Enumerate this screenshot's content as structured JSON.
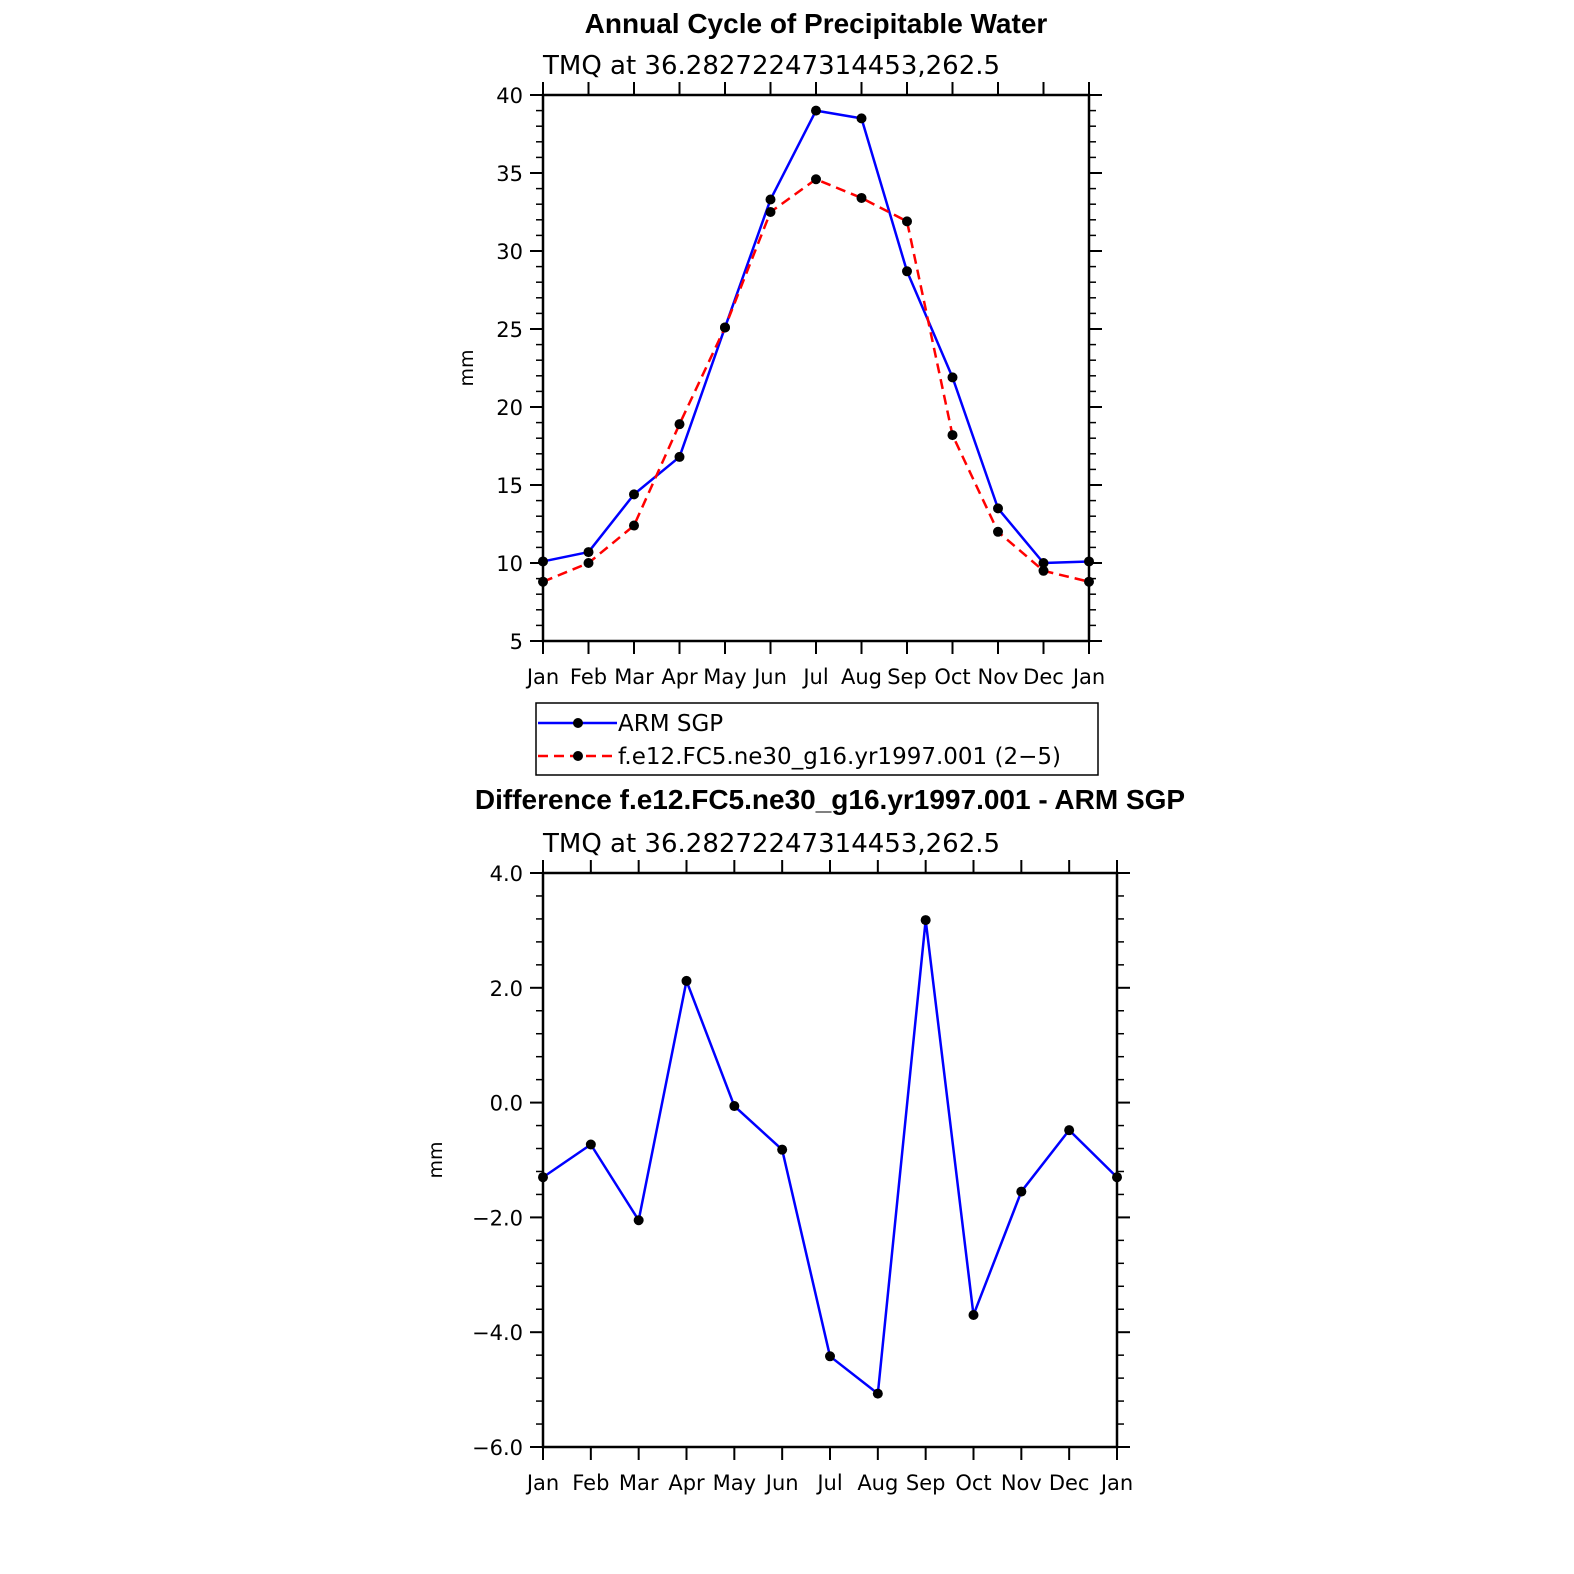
{
  "chart_data": [
    {
      "type": "line",
      "title": "Annual Cycle of Precipitable Water",
      "subtitle": "TMQ at 36.28272247314453,262.5",
      "xlabel": "",
      "ylabel": "mm",
      "categories": [
        "Jan",
        "Feb",
        "Mar",
        "Apr",
        "May",
        "Jun",
        "Jul",
        "Aug",
        "Sep",
        "Oct",
        "Nov",
        "Dec",
        "Jan"
      ],
      "ylim": [
        5,
        40
      ],
      "yticks": [
        5,
        10,
        15,
        20,
        25,
        30,
        35,
        40
      ],
      "ytick_labels": [
        "5",
        "10",
        "15",
        "20",
        "25",
        "30",
        "35",
        "40"
      ],
      "grid": false,
      "legend_position": "bottom",
      "series": [
        {
          "name": "ARM SGP",
          "color": "#0000ff",
          "dash": "solid",
          "values": [
            10.1,
            10.7,
            14.4,
            16.8,
            25.1,
            33.3,
            39.0,
            38.5,
            28.7,
            21.9,
            13.5,
            10.0,
            10.1
          ]
        },
        {
          "name": "f.e12.FC5.ne30_g16.yr1997.001 (2−5)",
          "color": "#ff0000",
          "dash": "dashed",
          "values": [
            8.8,
            10.0,
            12.4,
            18.9,
            25.1,
            32.5,
            34.6,
            33.4,
            31.9,
            18.2,
            12.0,
            9.5,
            8.8
          ]
        }
      ]
    },
    {
      "type": "line",
      "title": "Difference f.e12.FC5.ne30_g16.yr1997.001 - ARM SGP",
      "subtitle": "TMQ at 36.28272247314453,262.5",
      "xlabel": "",
      "ylabel": "mm",
      "categories": [
        "Jan",
        "Feb",
        "Mar",
        "Apr",
        "May",
        "Jun",
        "Jul",
        "Aug",
        "Sep",
        "Oct",
        "Nov",
        "Dec",
        "Jan"
      ],
      "ylim": [
        -6.0,
        4.0
      ],
      "yticks": [
        -6,
        -4,
        -2,
        0,
        2,
        4
      ],
      "ytick_labels": [
        "−6.0",
        "−4.0",
        "−2.0",
        "0.0",
        "2.0",
        "4.0"
      ],
      "grid": false,
      "series": [
        {
          "color": "#0000ff",
          "dash": "solid",
          "values": [
            -1.3,
            -0.73,
            -2.05,
            2.12,
            -0.06,
            -0.82,
            -4.42,
            -5.07,
            3.18,
            -3.7,
            -1.55,
            -0.48,
            -1.3
          ]
        }
      ]
    }
  ]
}
